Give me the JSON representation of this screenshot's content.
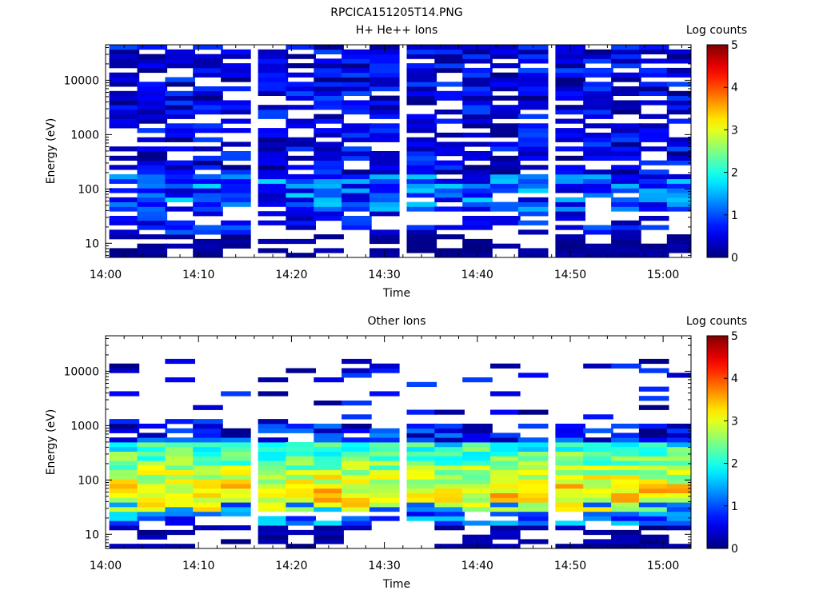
{
  "figure_title": "RPCICA151205T14.PNG",
  "chart_data": [
    {
      "type": "heatmap",
      "title": "H+ He++ Ions",
      "xlabel": "Time",
      "ylabel": "Energy (eV)",
      "x_ticks": [
        "14:00",
        "14:10",
        "14:20",
        "14:30",
        "14:40",
        "14:50",
        "15:00"
      ],
      "x_range": [
        "14:00",
        "15:03"
      ],
      "y_scale": "log",
      "y_range": [
        5.5,
        45000
      ],
      "y_ticks": [
        "10",
        "100",
        "1000",
        "10000"
      ],
      "colorbar": {
        "label": "Log counts",
        "range": [
          0,
          5
        ],
        "ticks": [
          "0",
          "1",
          "2",
          "3",
          "4",
          "5"
        ],
        "colormap": "jet"
      },
      "time_bins": [
        "14:02",
        "14:05",
        "14:08",
        "14:11",
        "14:14",
        "14:18",
        "14:21",
        "14:24",
        "14:27",
        "14:30",
        "14:34",
        "14:37",
        "14:40",
        "14:43",
        "14:46",
        "14:50",
        "14:53",
        "14:56",
        "14:59",
        "15:02"
      ],
      "profile": "low",
      "seed": 11
    },
    {
      "type": "heatmap",
      "title": "Other Ions",
      "xlabel": "Time",
      "ylabel": "Energy (eV)",
      "x_ticks": [
        "14:00",
        "14:10",
        "14:20",
        "14:30",
        "14:40",
        "14:50",
        "15:00"
      ],
      "x_range": [
        "14:00",
        "15:03"
      ],
      "y_scale": "log",
      "y_range": [
        5.5,
        45000
      ],
      "y_ticks": [
        "10",
        "100",
        "1000",
        "10000"
      ],
      "colorbar": {
        "label": "Log counts",
        "range": [
          0,
          5
        ],
        "ticks": [
          "0",
          "1",
          "2",
          "3",
          "4",
          "5"
        ],
        "colormap": "jet"
      },
      "time_bins": [
        "14:02",
        "14:05",
        "14:08",
        "14:11",
        "14:14",
        "14:18",
        "14:21",
        "14:24",
        "14:27",
        "14:30",
        "14:34",
        "14:37",
        "14:40",
        "14:43",
        "14:46",
        "14:50",
        "14:53",
        "14:56",
        "14:59",
        "15:02"
      ],
      "profile": "high",
      "seed": 29
    }
  ]
}
